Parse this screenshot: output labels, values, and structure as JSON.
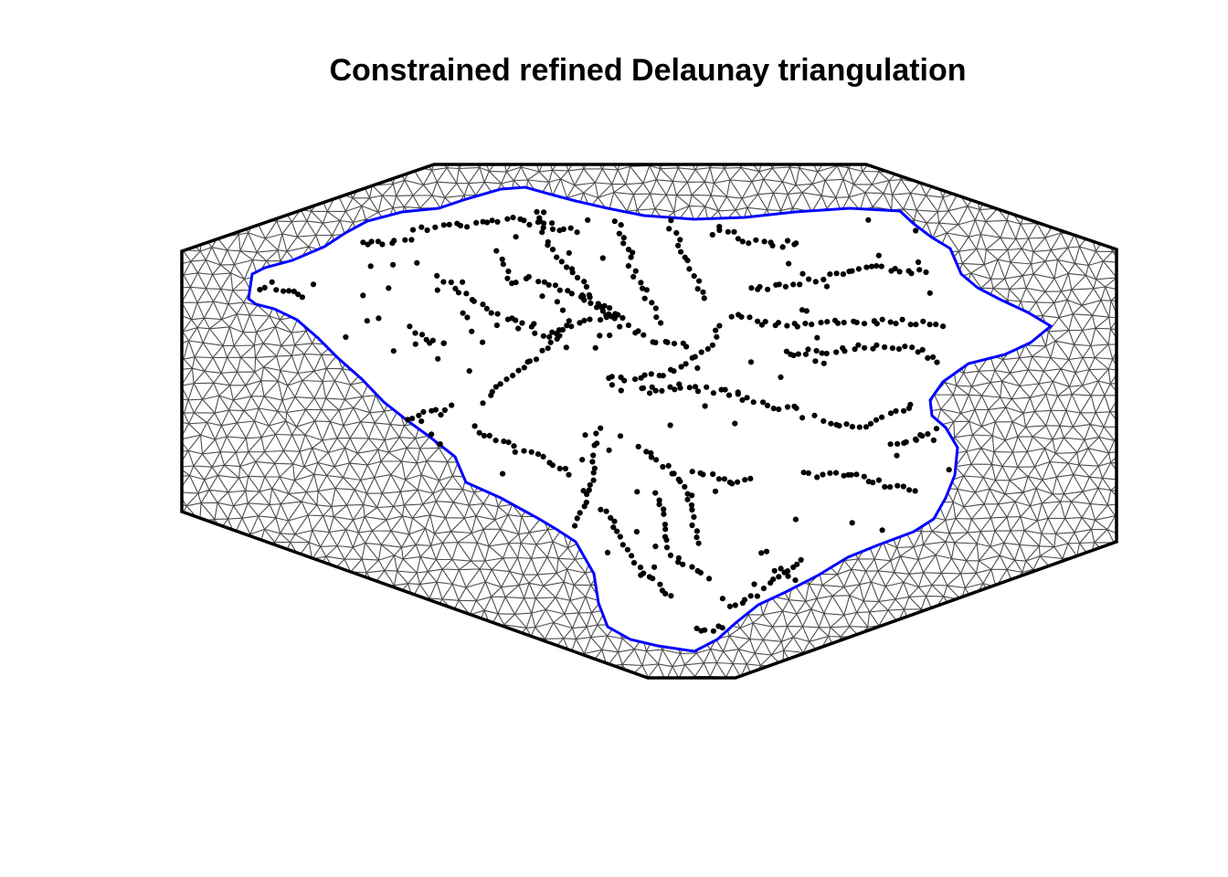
{
  "title": "Constrained refined Delaunay triangulation",
  "colors": {
    "mesh_edges": "#4d4d4d",
    "outer_boundary": "#000000",
    "inner_boundary": "#0000ff",
    "points": "#000000",
    "background": "#ffffff"
  }
}
